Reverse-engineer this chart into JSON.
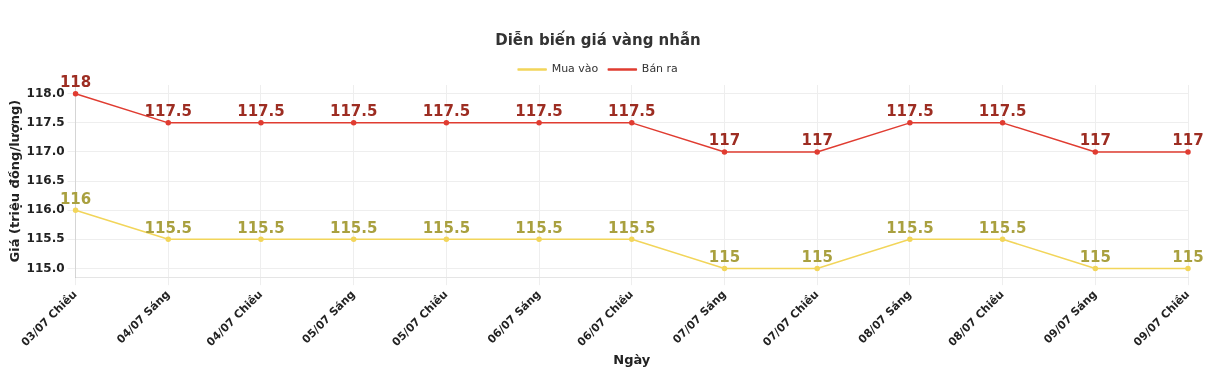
{
  "chart_data": {
    "type": "line",
    "title": "Diễn biến giá vàng nhẫn",
    "xlabel": "Ngày",
    "ylabel": "Giá (triệu đồng/lượng)",
    "categories": [
      "03/07 Chiều",
      "04/07 Sáng",
      "04/07 Chiều",
      "05/07 Sáng",
      "05/07 Chiều",
      "06/07 Sáng",
      "06/07 Chiều",
      "07/07 Sáng",
      "07/07 Chiều",
      "08/07 Sáng",
      "08/07 Chiều",
      "09/07 Sáng",
      "09/07 Chiều"
    ],
    "series": [
      {
        "name": "Mua vào",
        "color": "#f2d55a",
        "values": [
          116,
          115.5,
          115.5,
          115.5,
          115.5,
          115.5,
          115.5,
          115,
          115,
          115.5,
          115.5,
          115,
          115
        ]
      },
      {
        "name": "Bán ra",
        "color": "#e03c31",
        "values": [
          118,
          117.5,
          117.5,
          117.5,
          117.5,
          117.5,
          117.5,
          117,
          117,
          117.5,
          117.5,
          117,
          117
        ]
      }
    ],
    "ylim": [
      114.85,
      118.15
    ],
    "yticks": [
      {
        "value": 115,
        "label": "115.0"
      },
      {
        "value": 115.5,
        "label": "115.5"
      },
      {
        "value": 116,
        "label": "116.0"
      },
      {
        "value": 116.5,
        "label": "116.5"
      },
      {
        "value": 117,
        "label": "117.0"
      },
      {
        "value": 117.5,
        "label": "117.5"
      },
      {
        "value": 118,
        "label": "118.0"
      }
    ],
    "grid": true,
    "legend": "top",
    "marker": "circle",
    "line_style": "solid",
    "data_labels": true
  }
}
